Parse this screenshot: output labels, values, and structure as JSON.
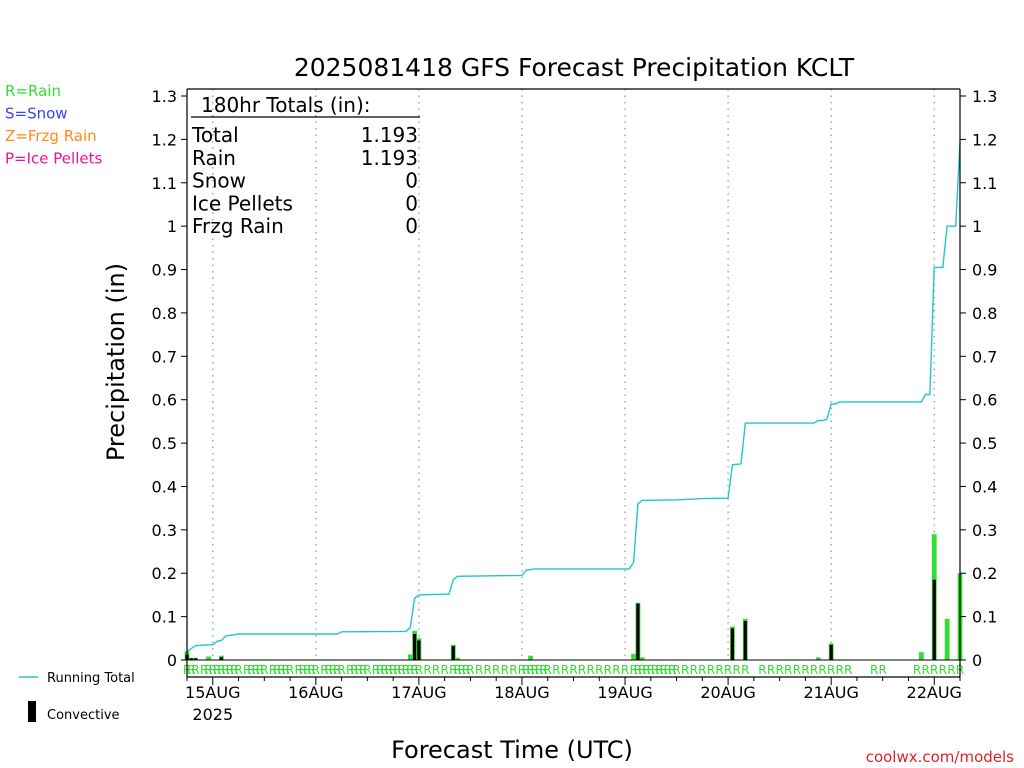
{
  "chart_data": {
    "type": "bar",
    "title": "2025081418 GFS Forecast Precipitation KCLT",
    "ylabel": "Precipitation (in)",
    "xlabel": "Forecast Time (UTC)",
    "ylim": [
      0,
      1.3
    ],
    "xlim": [
      0,
      180
    ],
    "yticks": [
      "0",
      "0.1",
      "0.2",
      "0.3",
      "0.4",
      "0.5",
      "0.6",
      "0.7",
      "0.8",
      "0.9",
      "1",
      "1.1",
      "1.2",
      "1.3"
    ],
    "xticks": [
      {
        "hour": 6,
        "label": "15AUG",
        "sub": "2025"
      },
      {
        "hour": 30,
        "label": "16AUG",
        "sub": ""
      },
      {
        "hour": 54,
        "label": "17AUG",
        "sub": ""
      },
      {
        "hour": 78,
        "label": "18AUG",
        "sub": ""
      },
      {
        "hour": 102,
        "label": "19AUG",
        "sub": ""
      },
      {
        "hour": 126,
        "label": "20AUG",
        "sub": ""
      },
      {
        "hour": 150,
        "label": "21AUG",
        "sub": ""
      },
      {
        "hour": 174,
        "label": "22AUG",
        "sub": ""
      }
    ],
    "grid": "dotted vertical at 00Z",
    "legend": {
      "types": [
        {
          "text": "R=Rain",
          "color": "#33dd33"
        },
        {
          "text": "S=Snow",
          "color": "#3344ff"
        },
        {
          "text": "Z=Frzg Rain",
          "color": "#ff8c1a"
        },
        {
          "text": "P=Ice Pellets",
          "color": "#ee1199"
        }
      ],
      "running_total": "Running Total",
      "convective": "Convective"
    },
    "totals_box": {
      "header": "180hr Totals (in):",
      "rows": [
        {
          "label": "Total",
          "value": "1.193"
        },
        {
          "label": "Rain",
          "value": "1.193"
        },
        {
          "label": "Snow",
          "value": "0"
        },
        {
          "label": "Ice Pellets",
          "value": "0"
        },
        {
          "label": "Frzg Rain",
          "value": "0"
        }
      ]
    },
    "series": [
      {
        "name": "Precipitation",
        "color": "#33dd33",
        "points": [
          [
            0,
            0.02
          ],
          [
            1,
            0.005
          ],
          [
            2,
            0.005
          ],
          [
            5,
            0.008
          ],
          [
            8,
            0.01
          ],
          [
            52,
            0.013
          ],
          [
            53,
            0.067
          ],
          [
            54,
            0.05
          ],
          [
            62,
            0.035
          ],
          [
            63,
            0.005
          ],
          [
            80,
            0.01
          ],
          [
            104,
            0.014
          ],
          [
            105,
            0.132
          ],
          [
            106,
            0.006
          ],
          [
            127,
            0.077
          ],
          [
            130,
            0.095
          ],
          [
            147,
            0.006
          ],
          [
            150,
            0.038
          ],
          [
            171,
            0.018
          ],
          [
            174,
            0.29
          ],
          [
            177,
            0.095
          ],
          [
            180,
            0.2
          ]
        ]
      },
      {
        "name": "Convective",
        "color": "#000000",
        "points": [
          [
            0,
            0.012
          ],
          [
            1,
            0.004
          ],
          [
            2,
            0.004
          ],
          [
            8,
            0.006
          ],
          [
            53,
            0.06
          ],
          [
            54,
            0.045
          ],
          [
            62,
            0.032
          ],
          [
            105,
            0.13
          ],
          [
            127,
            0.073
          ],
          [
            130,
            0.09
          ],
          [
            150,
            0.035
          ],
          [
            174,
            0.185
          ]
        ]
      },
      {
        "name": "Running Total",
        "color": "#22c6cc",
        "points": [
          [
            0,
            0.02
          ],
          [
            2,
            0.033
          ],
          [
            5,
            0.035
          ],
          [
            6,
            0.035
          ],
          [
            7,
            0.043
          ],
          [
            8,
            0.045
          ],
          [
            9,
            0.055
          ],
          [
            10,
            0.057
          ],
          [
            11,
            0.058
          ],
          [
            12,
            0.06
          ],
          [
            35,
            0.06
          ],
          [
            36,
            0.065
          ],
          [
            51,
            0.066
          ],
          [
            52,
            0.075
          ],
          [
            53,
            0.142
          ],
          [
            54,
            0.15
          ],
          [
            61,
            0.152
          ],
          [
            62,
            0.185
          ],
          [
            63,
            0.193
          ],
          [
            78,
            0.195
          ],
          [
            79,
            0.207
          ],
          [
            81,
            0.21
          ],
          [
            103,
            0.21
          ],
          [
            104,
            0.225
          ],
          [
            105,
            0.36
          ],
          [
            106,
            0.368
          ],
          [
            114,
            0.369
          ],
          [
            120,
            0.372
          ],
          [
            126,
            0.373
          ],
          [
            127,
            0.45
          ],
          [
            128,
            0.451
          ],
          [
            129,
            0.452
          ],
          [
            130,
            0.546
          ],
          [
            146,
            0.546
          ],
          [
            147,
            0.552
          ],
          [
            148,
            0.552
          ],
          [
            149,
            0.555
          ],
          [
            150,
            0.59
          ],
          [
            151,
            0.59
          ],
          [
            152,
            0.595
          ],
          [
            171,
            0.595
          ],
          [
            172,
            0.612
          ],
          [
            173,
            0.612
          ],
          [
            174,
            0.905
          ],
          [
            176,
            0.905
          ],
          [
            177,
            1.0
          ],
          [
            179,
            1.0
          ],
          [
            180,
            1.193
          ]
        ]
      }
    ],
    "precip_type_marks": {
      "letter": "R",
      "hours": [
        0,
        1,
        2,
        4,
        5,
        6,
        7,
        8,
        9,
        10,
        11,
        12,
        14,
        15,
        16,
        17,
        18,
        20,
        21,
        22,
        23,
        24,
        26,
        27,
        28,
        29,
        30,
        32,
        33,
        34,
        35,
        36,
        38,
        39,
        40,
        41,
        42,
        44,
        45,
        46,
        47,
        48,
        49,
        50,
        51,
        52,
        53,
        54,
        56,
        58,
        60,
        62,
        63,
        64,
        65,
        66,
        68,
        70,
        72,
        74,
        76,
        78,
        79,
        80,
        81,
        82,
        83,
        84,
        86,
        88,
        90,
        92,
        94,
        96,
        98,
        100,
        102,
        104,
        105,
        106,
        107,
        108,
        109,
        110,
        111,
        112,
        113,
        114,
        116,
        118,
        120,
        122,
        124,
        126,
        128,
        130,
        134,
        136,
        138,
        140,
        142,
        144,
        146,
        148,
        150,
        152,
        154,
        160,
        162,
        170,
        172,
        174,
        176,
        178,
        180
      ]
    }
  },
  "footer": {
    "credit": "coolwx.com/models"
  }
}
